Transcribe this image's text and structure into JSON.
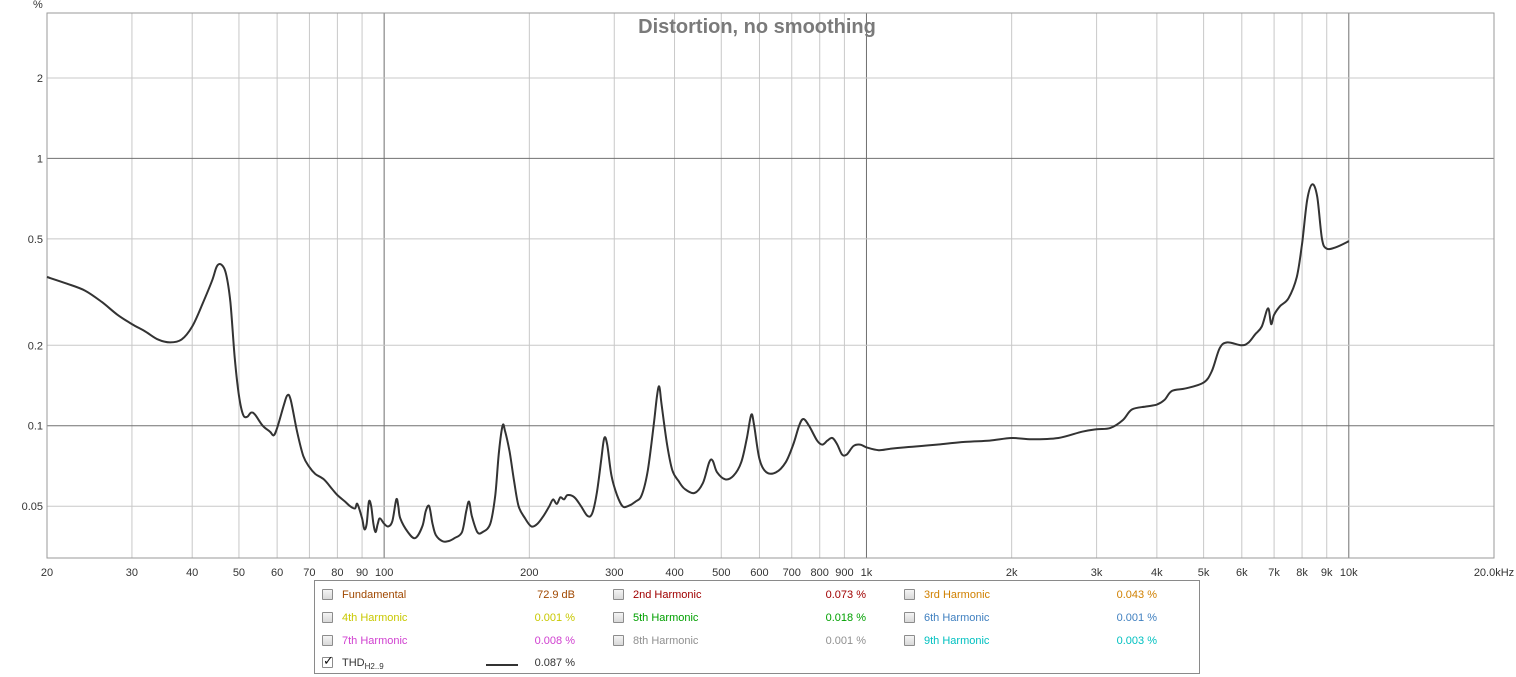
{
  "chart_data": {
    "type": "line",
    "title": "Distortion, no smoothing",
    "y_unit": "%",
    "x_scale": "log",
    "y_scale": "log",
    "xlim": [
      20,
      20000
    ],
    "ylim": [
      0.032,
      3.5
    ],
    "x_ticks": [
      {
        "v": 20,
        "label": "20"
      },
      {
        "v": 30,
        "label": "30"
      },
      {
        "v": 40,
        "label": "40"
      },
      {
        "v": 50,
        "label": "50"
      },
      {
        "v": 60,
        "label": "60"
      },
      {
        "v": 70,
        "label": "70"
      },
      {
        "v": 80,
        "label": "80"
      },
      {
        "v": 90,
        "label": "90"
      },
      {
        "v": 100,
        "label": "100"
      },
      {
        "v": 200,
        "label": "200"
      },
      {
        "v": 300,
        "label": "300"
      },
      {
        "v": 400,
        "label": "400"
      },
      {
        "v": 500,
        "label": "500"
      },
      {
        "v": 600,
        "label": "600"
      },
      {
        "v": 700,
        "label": "700"
      },
      {
        "v": 800,
        "label": "800"
      },
      {
        "v": 900,
        "label": "900"
      },
      {
        "v": 1000,
        "label": "1k"
      },
      {
        "v": 2000,
        "label": "2k"
      },
      {
        "v": 3000,
        "label": "3k"
      },
      {
        "v": 4000,
        "label": "4k"
      },
      {
        "v": 5000,
        "label": "5k"
      },
      {
        "v": 6000,
        "label": "6k"
      },
      {
        "v": 7000,
        "label": "7k"
      },
      {
        "v": 8000,
        "label": "8k"
      },
      {
        "v": 9000,
        "label": "9k"
      },
      {
        "v": 10000,
        "label": "10k"
      },
      {
        "v": 20000,
        "label": "20.0kHz"
      }
    ],
    "y_ticks": [
      {
        "v": 2,
        "label": "2"
      },
      {
        "v": 1,
        "label": "1"
      },
      {
        "v": 0.5,
        "label": "0.5"
      },
      {
        "v": 0.2,
        "label": "0.2"
      },
      {
        "v": 0.1,
        "label": "0.1"
      },
      {
        "v": 0.05,
        "label": "0.05"
      }
    ],
    "series": [
      {
        "name": "THD",
        "color": "#333333",
        "points": [
          [
            20,
            0.36
          ],
          [
            22,
            0.34
          ],
          [
            24,
            0.32
          ],
          [
            26,
            0.29
          ],
          [
            28,
            0.26
          ],
          [
            30,
            0.24
          ],
          [
            32,
            0.225
          ],
          [
            34,
            0.21
          ],
          [
            36,
            0.205
          ],
          [
            38,
            0.21
          ],
          [
            40,
            0.235
          ],
          [
            42,
            0.285
          ],
          [
            44,
            0.35
          ],
          [
            45,
            0.395
          ],
          [
            46,
            0.4
          ],
          [
            47,
            0.37
          ],
          [
            48,
            0.29
          ],
          [
            49,
            0.18
          ],
          [
            50,
            0.13
          ],
          [
            51,
            0.11
          ],
          [
            52,
            0.108
          ],
          [
            53,
            0.112
          ],
          [
            54,
            0.11
          ],
          [
            56,
            0.1
          ],
          [
            58,
            0.095
          ],
          [
            59,
            0.092
          ],
          [
            60,
            0.098
          ],
          [
            62,
            0.12
          ],
          [
            63,
            0.13
          ],
          [
            64,
            0.125
          ],
          [
            66,
            0.095
          ],
          [
            68,
            0.077
          ],
          [
            70,
            0.07
          ],
          [
            72,
            0.066
          ],
          [
            75,
            0.063
          ],
          [
            78,
            0.058
          ],
          [
            80,
            0.055
          ],
          [
            83,
            0.052
          ],
          [
            85,
            0.05
          ],
          [
            87,
            0.049
          ],
          [
            88,
            0.051
          ],
          [
            90,
            0.045
          ],
          [
            91,
            0.041
          ],
          [
            92,
            0.043
          ],
          [
            93,
            0.052
          ],
          [
            94,
            0.05
          ],
          [
            95,
            0.043
          ],
          [
            96,
            0.04
          ],
          [
            97,
            0.043
          ],
          [
            98,
            0.045
          ],
          [
            100,
            0.043
          ],
          [
            102,
            0.042
          ],
          [
            104,
            0.044
          ],
          [
            106,
            0.053
          ],
          [
            107,
            0.05
          ],
          [
            108,
            0.045
          ],
          [
            112,
            0.04
          ],
          [
            116,
            0.038
          ],
          [
            120,
            0.042
          ],
          [
            122,
            0.048
          ],
          [
            124,
            0.05
          ],
          [
            126,
            0.043
          ],
          [
            128,
            0.039
          ],
          [
            132,
            0.037
          ],
          [
            136,
            0.037
          ],
          [
            140,
            0.038
          ],
          [
            145,
            0.04
          ],
          [
            148,
            0.048
          ],
          [
            150,
            0.052
          ],
          [
            152,
            0.046
          ],
          [
            156,
            0.04
          ],
          [
            160,
            0.04
          ],
          [
            166,
            0.043
          ],
          [
            170,
            0.055
          ],
          [
            173,
            0.08
          ],
          [
            176,
            0.1
          ],
          [
            178,
            0.096
          ],
          [
            182,
            0.08
          ],
          [
            186,
            0.062
          ],
          [
            190,
            0.05
          ],
          [
            196,
            0.045
          ],
          [
            202,
            0.042
          ],
          [
            208,
            0.043
          ],
          [
            214,
            0.046
          ],
          [
            220,
            0.05
          ],
          [
            224,
            0.053
          ],
          [
            228,
            0.051
          ],
          [
            232,
            0.054
          ],
          [
            236,
            0.053
          ],
          [
            240,
            0.055
          ],
          [
            248,
            0.054
          ],
          [
            256,
            0.05
          ],
          [
            264,
            0.046
          ],
          [
            270,
            0.047
          ],
          [
            276,
            0.056
          ],
          [
            282,
            0.075
          ],
          [
            286,
            0.09
          ],
          [
            290,
            0.085
          ],
          [
            296,
            0.065
          ],
          [
            304,
            0.055
          ],
          [
            312,
            0.05
          ],
          [
            320,
            0.05
          ],
          [
            332,
            0.052
          ],
          [
            342,
            0.055
          ],
          [
            352,
            0.068
          ],
          [
            362,
            0.1
          ],
          [
            368,
            0.13
          ],
          [
            372,
            0.14
          ],
          [
            376,
            0.12
          ],
          [
            386,
            0.085
          ],
          [
            396,
            0.068
          ],
          [
            408,
            0.062
          ],
          [
            420,
            0.058
          ],
          [
            440,
            0.056
          ],
          [
            458,
            0.061
          ],
          [
            472,
            0.073
          ],
          [
            480,
            0.074
          ],
          [
            490,
            0.067
          ],
          [
            510,
            0.063
          ],
          [
            530,
            0.065
          ],
          [
            550,
            0.073
          ],
          [
            565,
            0.09
          ],
          [
            577,
            0.11
          ],
          [
            585,
            0.1
          ],
          [
            600,
            0.075
          ],
          [
            620,
            0.067
          ],
          [
            650,
            0.067
          ],
          [
            680,
            0.073
          ],
          [
            705,
            0.085
          ],
          [
            725,
            0.1
          ],
          [
            740,
            0.106
          ],
          [
            760,
            0.1
          ],
          [
            790,
            0.088
          ],
          [
            810,
            0.085
          ],
          [
            830,
            0.088
          ],
          [
            850,
            0.09
          ],
          [
            870,
            0.085
          ],
          [
            890,
            0.078
          ],
          [
            910,
            0.078
          ],
          [
            940,
            0.084
          ],
          [
            970,
            0.085
          ],
          [
            1000,
            0.083
          ],
          [
            1060,
            0.081
          ],
          [
            1120,
            0.082
          ],
          [
            1200,
            0.083
          ],
          [
            1300,
            0.084
          ],
          [
            1400,
            0.085
          ],
          [
            1600,
            0.087
          ],
          [
            1800,
            0.088
          ],
          [
            2000,
            0.09
          ],
          [
            2200,
            0.089
          ],
          [
            2500,
            0.09
          ],
          [
            2800,
            0.095
          ],
          [
            3000,
            0.097
          ],
          [
            3200,
            0.098
          ],
          [
            3400,
            0.105
          ],
          [
            3550,
            0.115
          ],
          [
            3800,
            0.118
          ],
          [
            4000,
            0.12
          ],
          [
            4150,
            0.125
          ],
          [
            4300,
            0.135
          ],
          [
            4600,
            0.138
          ],
          [
            5000,
            0.145
          ],
          [
            5200,
            0.16
          ],
          [
            5400,
            0.195
          ],
          [
            5600,
            0.205
          ],
          [
            6000,
            0.2
          ],
          [
            6200,
            0.205
          ],
          [
            6400,
            0.22
          ],
          [
            6600,
            0.235
          ],
          [
            6800,
            0.275
          ],
          [
            6900,
            0.24
          ],
          [
            7000,
            0.26
          ],
          [
            7200,
            0.28
          ],
          [
            7500,
            0.3
          ],
          [
            7800,
            0.36
          ],
          [
            8000,
            0.48
          ],
          [
            8200,
            0.7
          ],
          [
            8400,
            0.8
          ],
          [
            8600,
            0.72
          ],
          [
            8800,
            0.5
          ],
          [
            9000,
            0.46
          ],
          [
            9400,
            0.465
          ],
          [
            10000,
            0.49
          ]
        ]
      }
    ]
  },
  "legend": {
    "items": [
      {
        "label": "Fundamental",
        "value": "72.9 dB",
        "color": "#a04800",
        "checked": false
      },
      {
        "label": "2nd Harmonic",
        "value": "0.073 %",
        "color": "#a00000",
        "checked": false
      },
      {
        "label": "3rd Harmonic",
        "value": "0.043 %",
        "color": "#d08000",
        "checked": false
      },
      {
        "label": "4th Harmonic",
        "value": "0.001 %",
        "color": "#c8c800",
        "checked": false
      },
      {
        "label": "5th Harmonic",
        "value": "0.018 %",
        "color": "#00a000",
        "checked": false
      },
      {
        "label": "6th Harmonic",
        "value": "0.001 %",
        "color": "#4080c0",
        "checked": false
      },
      {
        "label": "7th Harmonic",
        "value": "0.008 %",
        "color": "#d040d0",
        "checked": false
      },
      {
        "label": "8th Harmonic",
        "value": "0.001 %",
        "color": "#909090",
        "checked": false
      },
      {
        "label": "9th Harmonic",
        "value": "0.003 %",
        "color": "#00c0c0",
        "checked": false
      }
    ],
    "thd": {
      "label": "THD",
      "sub": "H2..9",
      "value": "0.087 %",
      "color": "#333333",
      "checked": true
    }
  }
}
